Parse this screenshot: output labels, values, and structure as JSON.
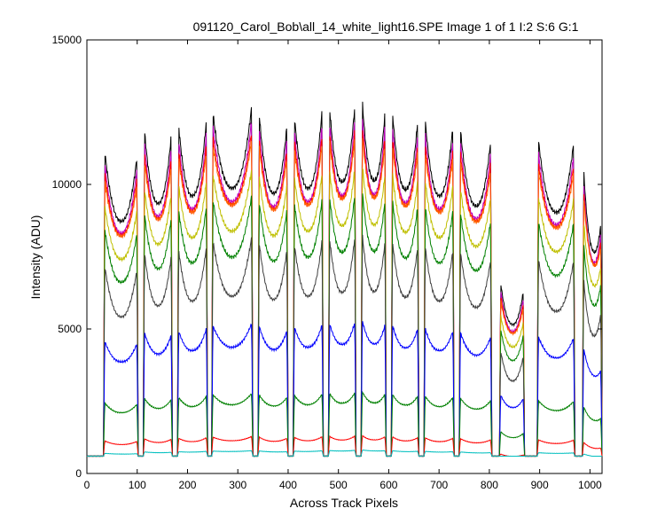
{
  "chart_data": {
    "type": "line",
    "title": "091120_Carol_Bob\\all_14_white_light16.SPE  Image 1 of 1  I:2  S:6  G:1",
    "xlabel": "Across Track Pixels",
    "ylabel": "Intensity (ADU)",
    "xlim": [
      0,
      1024
    ],
    "ylim": [
      0,
      15000
    ],
    "xticks": [
      0,
      100,
      200,
      300,
      400,
      500,
      600,
      700,
      800,
      900,
      1000
    ],
    "yticks": [
      0,
      5000,
      10000,
      15000
    ],
    "grid": false,
    "legend": "none",
    "baseline": 600,
    "fibers": [
      {
        "x0": 33,
        "x1": 102,
        "peaks": [
          1.0,
          0.98
        ]
      },
      {
        "x0": 112,
        "x1": 170,
        "peaks": [
          1.07,
          1.05
        ]
      },
      {
        "x0": 180,
        "x1": 240,
        "peaks": [
          1.08,
          1.1
        ]
      },
      {
        "x0": 248,
        "x1": 330,
        "peaks": [
          1.11,
          1.13
        ]
      },
      {
        "x0": 340,
        "x1": 400,
        "peaks": [
          1.12,
          1.08
        ]
      },
      {
        "x0": 410,
        "x1": 470,
        "peaks": [
          1.11,
          1.13
        ]
      },
      {
        "x0": 480,
        "x1": 535,
        "peaks": [
          1.14,
          1.15
        ]
      },
      {
        "x0": 545,
        "x1": 595,
        "peaks": [
          1.17,
          1.13
        ]
      },
      {
        "x0": 605,
        "x1": 660,
        "peaks": [
          1.13,
          1.1
        ]
      },
      {
        "x0": 670,
        "x1": 730,
        "peaks": [
          1.1,
          1.08
        ]
      },
      {
        "x0": 740,
        "x1": 805,
        "peaks": [
          1.07,
          1.03
        ]
      },
      {
        "x0": 820,
        "x1": 870,
        "peaks": [
          0.6,
          0.57
        ]
      },
      {
        "x0": 895,
        "x1": 970,
        "peaks": [
          1.03,
          1.02
        ]
      },
      {
        "x0": 985,
        "x1": 1024,
        "peaks": [
          0.98,
          0.78
        ]
      }
    ],
    "series": [
      {
        "color": "#000000",
        "scale": 11600,
        "trough": 0.76
      },
      {
        "color": "#bf00bf",
        "scale": 11200,
        "trough": 0.75
      },
      {
        "color": "#ff0000",
        "scale": 10800,
        "trough": 0.77
      },
      {
        "color": "#ff6600",
        "scale": 10500,
        "trough": 0.79
      },
      {
        "color": "#bfbf00",
        "scale": 9600,
        "trough": 0.78
      },
      {
        "color": "#008000",
        "scale": 8800,
        "trough": 0.76
      },
      {
        "color": "#404040",
        "scale": 7500,
        "trough": 0.73
      },
      {
        "color": "#0000ff",
        "scale": 4700,
        "trough": 0.83
      },
      {
        "color": "#008000",
        "scale": 2500,
        "trough": 0.85
      },
      {
        "color": "#ff0000",
        "scale": 1150,
        "trough": 0.88
      },
      {
        "color": "#00bfbf",
        "scale": 700,
        "trough": 0.97
      }
    ]
  }
}
